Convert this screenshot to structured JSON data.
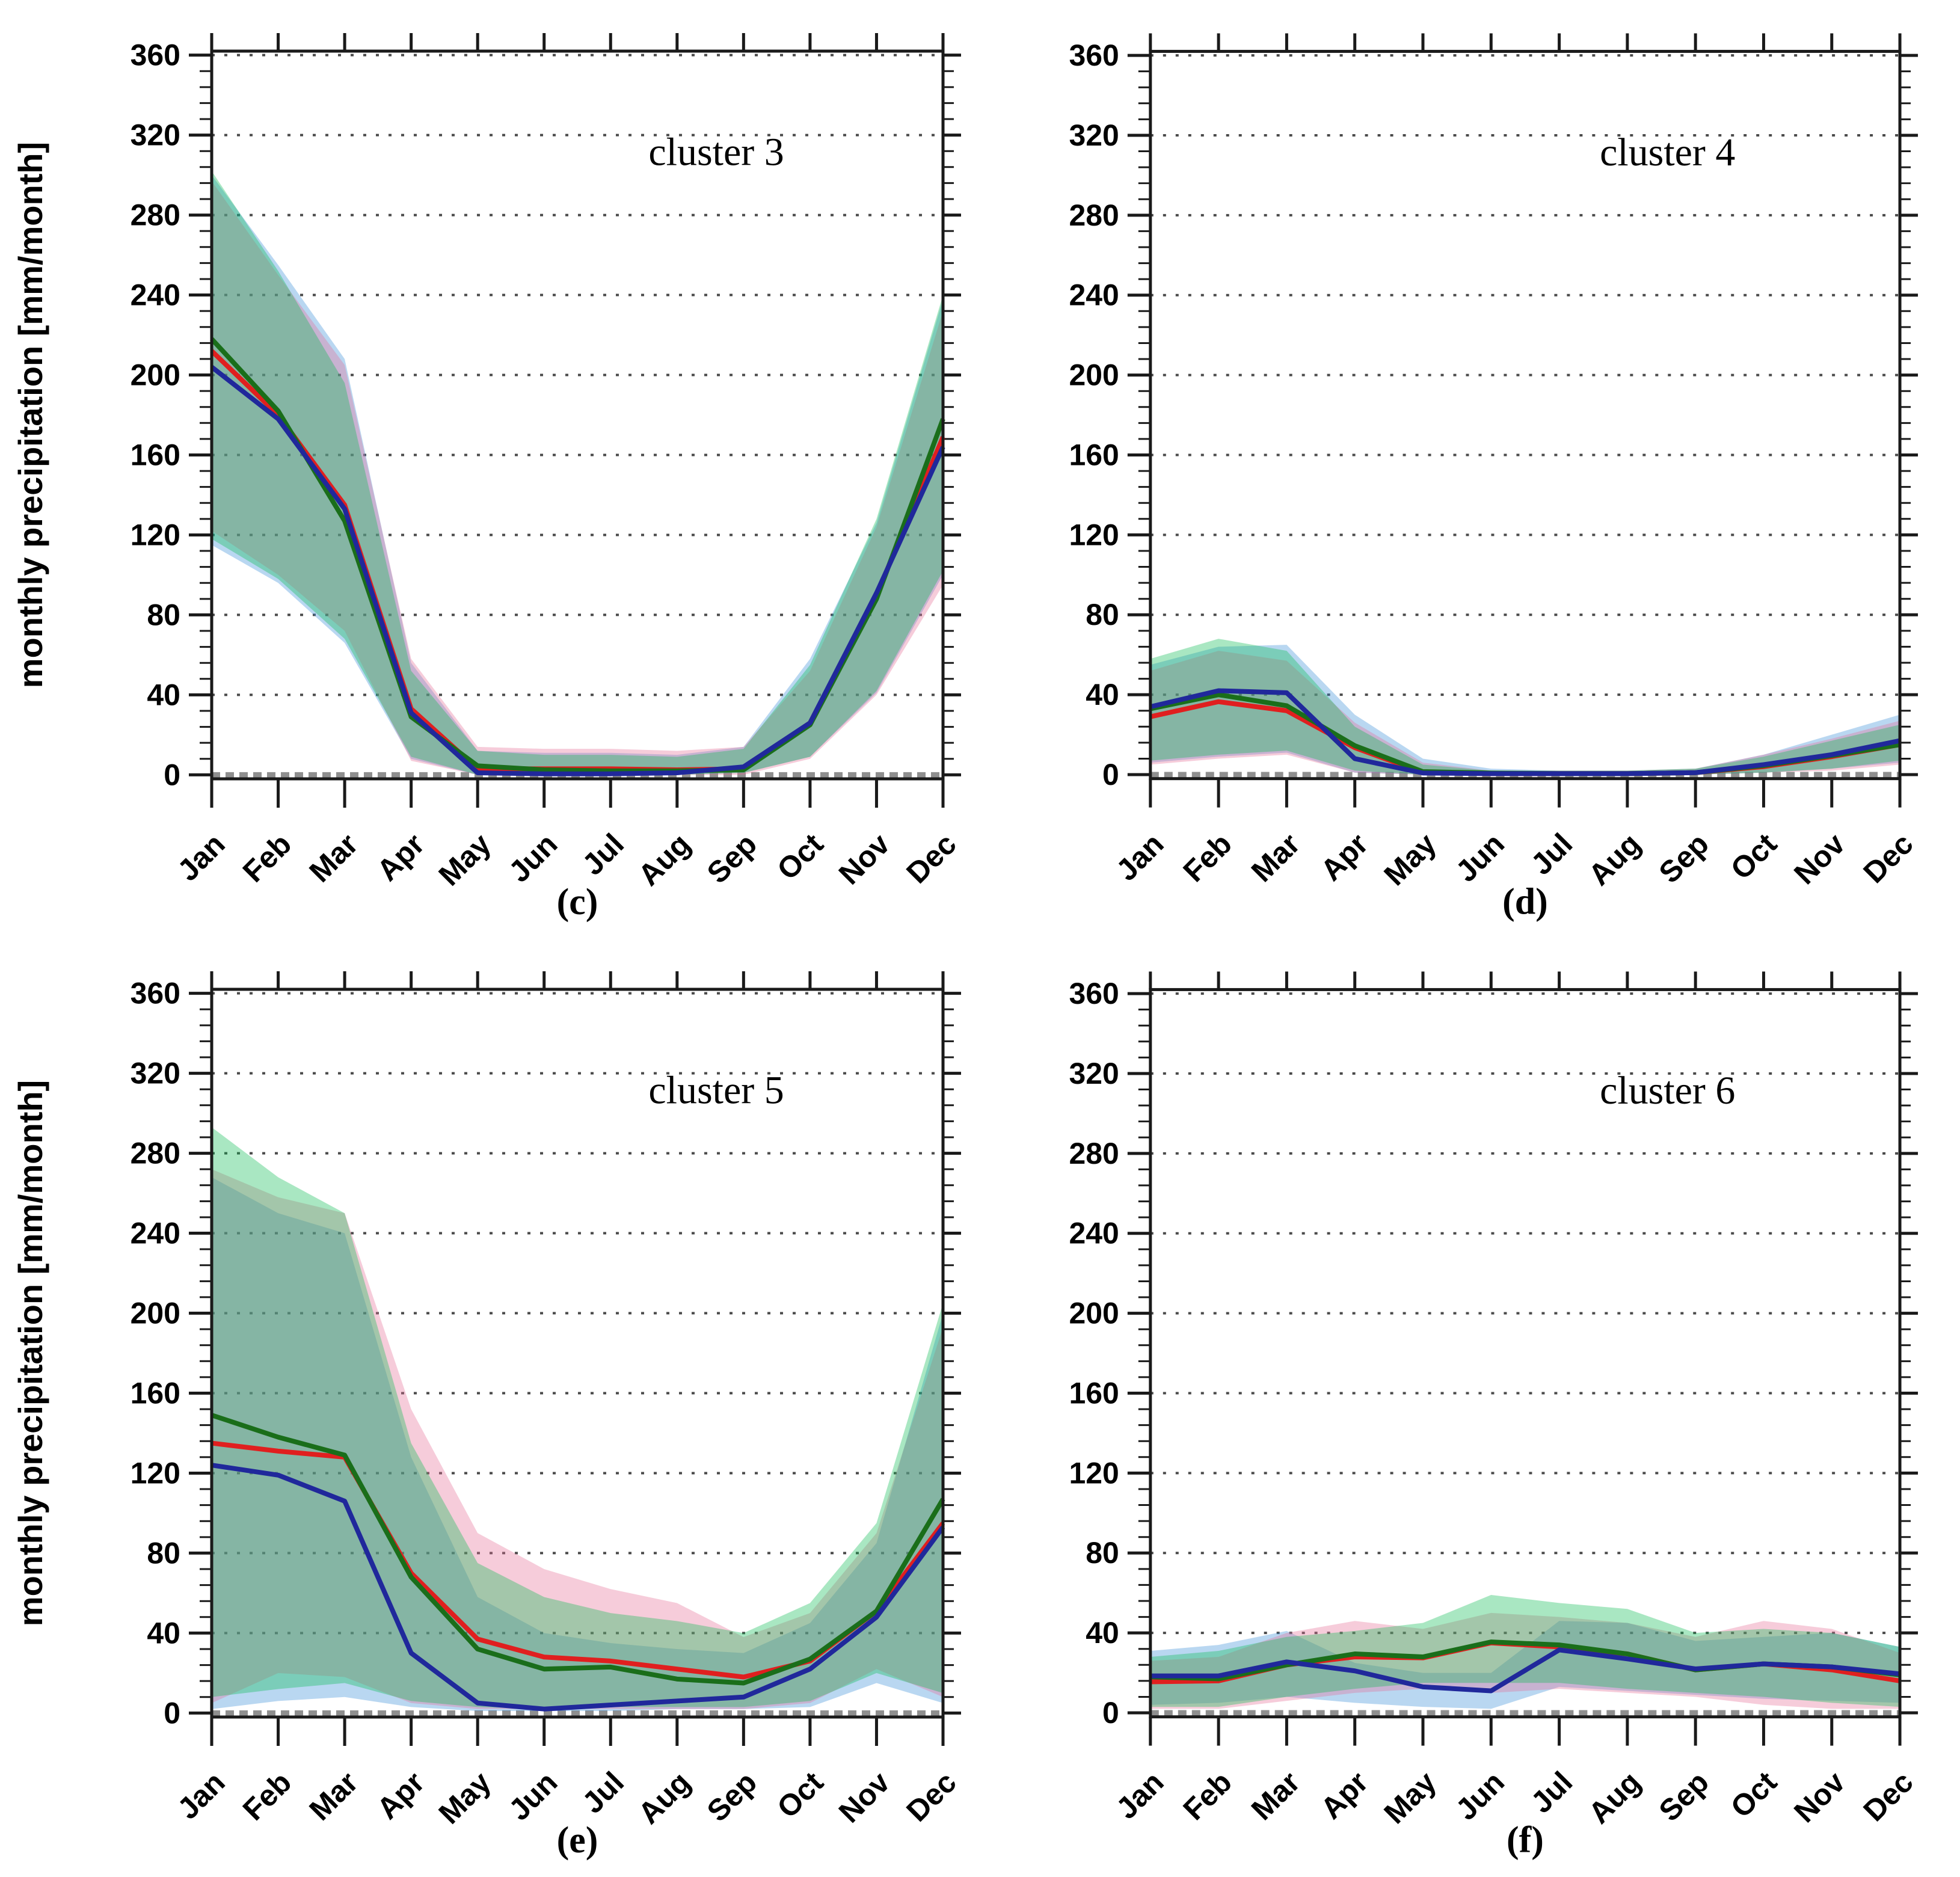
{
  "figure": {
    "ylabel": "monthly precipitation [mm/month]",
    "months": [
      "Jan",
      "Feb",
      "Mar",
      "Apr",
      "May",
      "Jun",
      "Jul",
      "Aug",
      "Sep",
      "Oct",
      "Nov",
      "Dec"
    ],
    "y_axis": {
      "min": 0,
      "max": 360,
      "major_step": 40,
      "minor_step": 8,
      "unit": "mm/month"
    }
  },
  "colors": {
    "line_red": "#e01f1f",
    "line_green": "#1a6e1a",
    "line_blue": "#20289b",
    "band_green": "rgba(8,185,80,0.35)",
    "band_pink": "rgba(230,110,150,0.35)",
    "band_blue": "rgba(55,140,215,0.35)",
    "grid": "#4a4a4a",
    "zero_line": "#8f8f8f",
    "frame": "#1a1a1a",
    "text": "#000000"
  },
  "chart_data": [
    {
      "type": "line",
      "id": "c",
      "title": "cluster 3",
      "letter": "(c)",
      "has_ylabel": true,
      "x": [
        "Jan",
        "Feb",
        "Mar",
        "Apr",
        "May",
        "Jun",
        "Jul",
        "Aug",
        "Sep",
        "Oct",
        "Nov",
        "Dec"
      ],
      "ylim": [
        0,
        360
      ],
      "series": [
        {
          "name": "red",
          "values": [
            212,
            180,
            135,
            33,
            3,
            3,
            3,
            2.5,
            3,
            26,
            90,
            169
          ]
        },
        {
          "name": "green",
          "values": [
            218,
            182,
            127,
            29,
            4.5,
            2.5,
            2,
            2,
            2.5,
            25,
            88,
            178
          ]
        },
        {
          "name": "blue",
          "values": [
            204,
            178,
            133,
            31,
            1,
            0.5,
            0.5,
            1,
            4,
            26,
            91,
            164
          ]
        }
      ],
      "bands": [
        {
          "name": "blue",
          "upper": [
            300,
            255,
            208,
            56,
            12,
            11,
            11,
            10,
            14,
            58,
            126,
            238
          ],
          "lower": [
            115,
            96,
            66,
            8,
            0,
            0,
            0,
            0,
            1,
            9,
            41,
            100
          ]
        },
        {
          "name": "pink",
          "upper": [
            297,
            250,
            205,
            58,
            14,
            13,
            13,
            12,
            14,
            52,
            124,
            232
          ],
          "lower": [
            122,
            100,
            72,
            7,
            0,
            0,
            0,
            0,
            0,
            8,
            40,
            95
          ]
        },
        {
          "name": "green",
          "upper": [
            302,
            252,
            196,
            52,
            12,
            10,
            10,
            9,
            13,
            55,
            128,
            240
          ],
          "lower": [
            118,
            98,
            68,
            9,
            0,
            0,
            0,
            0,
            1,
            9,
            42,
            102
          ]
        }
      ]
    },
    {
      "type": "line",
      "id": "d",
      "title": "cluster 4",
      "letter": "(d)",
      "has_ylabel": false,
      "x": [
        "Jan",
        "Feb",
        "Mar",
        "Apr",
        "May",
        "Jun",
        "Jul",
        "Aug",
        "Sep",
        "Oct",
        "Nov",
        "Dec"
      ],
      "ylim": [
        0,
        360
      ],
      "series": [
        {
          "name": "red",
          "values": [
            29,
            36.5,
            32,
            13.5,
            1,
            0.5,
            0.5,
            0.5,
            1,
            4,
            9,
            15
          ]
        },
        {
          "name": "green",
          "values": [
            33,
            40,
            34.5,
            14.5,
            1.5,
            0.8,
            0.5,
            0.5,
            1,
            4.5,
            9.5,
            15
          ]
        },
        {
          "name": "blue",
          "values": [
            34,
            42,
            41,
            8,
            0.8,
            0.5,
            0.5,
            0.5,
            1,
            5,
            10,
            17
          ]
        }
      ],
      "bands": [
        {
          "name": "blue",
          "upper": [
            55,
            64,
            65,
            30,
            8,
            3,
            2,
            2,
            3,
            10,
            20,
            30
          ],
          "lower": [
            6,
            9,
            11,
            1,
            0,
            0,
            0,
            0,
            0,
            1,
            3,
            6
          ]
        },
        {
          "name": "pink",
          "upper": [
            52,
            62,
            57,
            26,
            6,
            2,
            2,
            2,
            3,
            10,
            18,
            27
          ],
          "lower": [
            5,
            8,
            10,
            1,
            0,
            0,
            0,
            0,
            0,
            1,
            2,
            5
          ]
        },
        {
          "name": "green",
          "upper": [
            58,
            68,
            62,
            24,
            5,
            2,
            2,
            2,
            3,
            9,
            17,
            25
          ],
          "lower": [
            7,
            10,
            12,
            2,
            0,
            0,
            0,
            0,
            0,
            1,
            3,
            7
          ]
        }
      ]
    },
    {
      "type": "line",
      "id": "e",
      "title": "cluster 5",
      "letter": "(e)",
      "has_ylabel": true,
      "x": [
        "Jan",
        "Feb",
        "Mar",
        "Apr",
        "May",
        "Jun",
        "Jul",
        "Aug",
        "Sep",
        "Oct",
        "Nov",
        "Dec"
      ],
      "ylim": [
        0,
        360
      ],
      "series": [
        {
          "name": "red",
          "values": [
            135,
            131,
            128,
            70,
            37,
            28,
            26,
            22,
            18,
            26,
            51,
            95
          ]
        },
        {
          "name": "green",
          "values": [
            149,
            138,
            129,
            68,
            32,
            22,
            23,
            17,
            15,
            27,
            51,
            107
          ]
        },
        {
          "name": "blue",
          "values": [
            124,
            119,
            106,
            30,
            5,
            2,
            4,
            6,
            8,
            22,
            48,
            93
          ]
        }
      ],
      "bands": [
        {
          "name": "blue",
          "upper": [
            268,
            250,
            240,
            128,
            58,
            40,
            35,
            32,
            30,
            45,
            85,
            200
          ],
          "lower": [
            2,
            6,
            8,
            3,
            1,
            1,
            1,
            2,
            2,
            3,
            15,
            5
          ]
        },
        {
          "name": "pink",
          "upper": [
            272,
            258,
            250,
            152,
            90,
            72,
            62,
            55,
            38,
            50,
            90,
            193
          ],
          "lower": [
            5,
            20,
            18,
            5,
            2,
            2,
            2,
            2,
            2,
            5,
            22,
            8
          ]
        },
        {
          "name": "green",
          "upper": [
            293,
            268,
            250,
            135,
            75,
            58,
            50,
            46,
            40,
            55,
            95,
            205
          ],
          "lower": [
            8,
            12,
            15,
            6,
            3,
            2,
            3,
            3,
            3,
            6,
            20,
            10
          ]
        }
      ]
    },
    {
      "type": "line",
      "id": "f",
      "title": "cluster 6",
      "letter": "(f)",
      "has_ylabel": false,
      "x": [
        "Jan",
        "Feb",
        "Mar",
        "Apr",
        "May",
        "Jun",
        "Jul",
        "Aug",
        "Sep",
        "Oct",
        "Nov",
        "Dec"
      ],
      "ylim": [
        0,
        360
      ],
      "series": [
        {
          "name": "red",
          "values": [
            15.5,
            16,
            24,
            28,
            27.5,
            35,
            33,
            29.5,
            21.5,
            24.5,
            21.5,
            16
          ]
        },
        {
          "name": "green",
          "values": [
            18,
            17,
            24,
            29.5,
            28,
            35.5,
            34,
            29.5,
            21.5,
            24.5,
            23,
            19
          ]
        },
        {
          "name": "blue",
          "values": [
            18.5,
            18.5,
            25.5,
            21,
            13,
            11,
            31.5,
            27,
            22,
            24.5,
            23,
            19.5
          ]
        }
      ],
      "bands": [
        {
          "name": "blue",
          "upper": [
            31,
            34,
            41,
            25,
            20,
            20,
            46,
            45,
            36,
            38,
            40,
            33
          ],
          "lower": [
            4,
            5,
            8,
            5,
            3,
            2,
            13,
            11,
            9,
            7,
            6,
            5
          ]
        },
        {
          "name": "pink",
          "upper": [
            26,
            28,
            40,
            46,
            42,
            50,
            48,
            45,
            38,
            46,
            42,
            30
          ],
          "lower": [
            2,
            2,
            6,
            10,
            12,
            10,
            12,
            10,
            8,
            4,
            2,
            2
          ]
        },
        {
          "name": "green",
          "upper": [
            28,
            31,
            38,
            41,
            45,
            59,
            55,
            52,
            40,
            42,
            40,
            33
          ],
          "lower": [
            3,
            3,
            8,
            12,
            15,
            15,
            15,
            12,
            10,
            8,
            5,
            3
          ]
        }
      ]
    }
  ],
  "layout_note": "2x2 grid of panels; left column panels carry the rotated y-axis title"
}
